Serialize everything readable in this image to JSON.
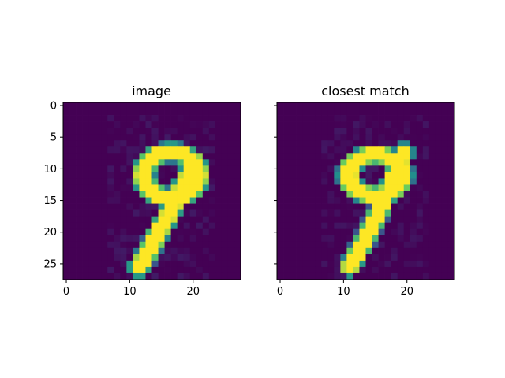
{
  "chart_data": [
    {
      "type": "heatmap",
      "title": "image",
      "colormap": "viridis",
      "rows": 28,
      "cols": 28,
      "x_extent": [
        -0.5,
        27.5
      ],
      "y_extent": [
        27.5,
        -0.5
      ],
      "xticks": [
        0,
        10,
        20
      ],
      "yticks": [
        0,
        5,
        10,
        15,
        20,
        25
      ],
      "strokes": [
        {
          "cx": 16.5,
          "cy": 11.0,
          "rx": 4.3,
          "ry": 3.6,
          "mode": "ring",
          "width": 1.7
        },
        {
          "line": [
            [
              20.3,
              9.0
            ],
            [
              16.0,
              17.5
            ],
            [
              13.0,
              23.0
            ],
            [
              11.5,
              25.5
            ]
          ],
          "width": 1.9
        }
      ],
      "noise_level": 0.08
    },
    {
      "type": "heatmap",
      "title": "closest match",
      "colormap": "viridis",
      "rows": 28,
      "cols": 28,
      "x_extent": [
        -0.5,
        27.5
      ],
      "y_extent": [
        27.5,
        -0.5
      ],
      "xticks": [
        0,
        10,
        20
      ],
      "yticks": [],
      "strokes": [
        {
          "cx": 15.0,
          "cy": 11.0,
          "rx": 4.2,
          "ry": 3.2,
          "mode": "ring",
          "width": 1.6
        },
        {
          "line": [
            [
              19.5,
              7.5
            ],
            [
              16.0,
              16.0
            ],
            [
              13.0,
              22.0
            ],
            [
              11.0,
              25.5
            ]
          ],
          "width": 1.8
        }
      ],
      "noise_level": 0.07
    }
  ]
}
